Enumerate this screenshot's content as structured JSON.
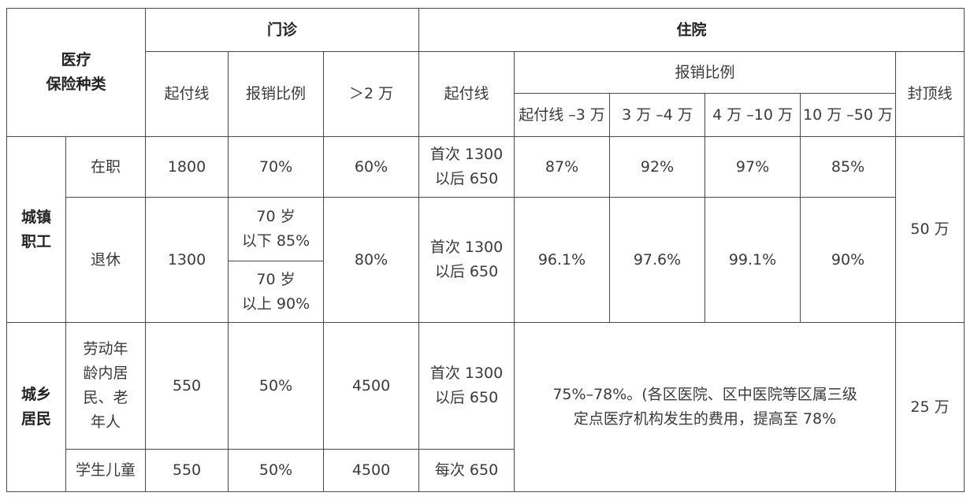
{
  "header": {
    "insurance_type": "医疗\n保险种类",
    "outpatient": "门诊",
    "inpatient": "住院",
    "reimb_ratio_group": "报销比例",
    "cols": {
      "op_deductible": "起付线",
      "op_ratio": "报销比例",
      "op_over2w": "＞2 万",
      "ip_deductible": "起付线",
      "band1": "起付线 –3 万",
      "band2": "3 万 –4 万",
      "band3": "4 万 –10 万",
      "band4": "10 万 –50 万",
      "cap": "封顶线"
    }
  },
  "groups": {
    "urban_employee": "城镇\n职工",
    "urban_rural": "城乡\n居民"
  },
  "rows": {
    "employed": {
      "category": "在职",
      "op_deductible": "1800",
      "op_ratio": "70%",
      "op_over2w": "60%",
      "ip_deductible": "首次 1300\n以后 650",
      "band1": "87%",
      "band2": "92%",
      "band3": "97%",
      "band4": "85%"
    },
    "retired": {
      "category": "退休",
      "op_deductible": "1300",
      "op_ratio_under70": "70 岁\n以下 85%",
      "op_ratio_over70": "70 岁\n以上 90%",
      "op_over2w": "80%",
      "ip_deductible": "首次 1300\n以后 650",
      "band1": "96.1%",
      "band2": "97.6%",
      "band3": "99.1%",
      "band4": "90%"
    },
    "employee_cap": "50 万",
    "resident_working": {
      "category": "劳动年\n龄内居\n民、老\n年人",
      "op_deductible": "550",
      "op_ratio": "50%",
      "op_over2w": "4500",
      "ip_deductible": "首次 1300\n以后 650"
    },
    "resident_ratio_note": "75%–78%。(各区医院、区中医院等区属三级\n定点医疗机构发生的费用，提高至 78%",
    "resident_cap": "25 万",
    "student": {
      "category": "学生儿童",
      "op_deductible": "550",
      "op_ratio": "50%",
      "op_over2w": "4500",
      "ip_deductible": "每次 650"
    }
  }
}
